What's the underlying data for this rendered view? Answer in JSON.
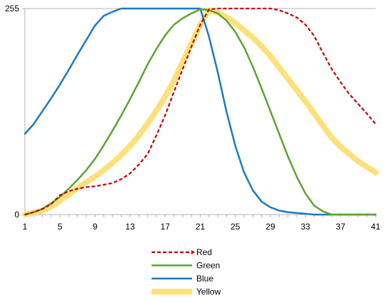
{
  "chart_data": {
    "type": "line",
    "x": [
      1,
      2,
      3,
      4,
      5,
      6,
      7,
      8,
      9,
      10,
      11,
      12,
      13,
      14,
      15,
      16,
      17,
      18,
      19,
      20,
      21,
      22,
      23,
      24,
      25,
      26,
      27,
      28,
      29,
      30,
      31,
      32,
      33,
      34,
      35,
      36,
      37,
      38,
      39,
      40,
      41
    ],
    "xticks": [
      1,
      5,
      9,
      13,
      17,
      21,
      25,
      29,
      33,
      37,
      41
    ],
    "yticks": [
      0,
      255
    ],
    "ylim": [
      0,
      255
    ],
    "xlim": [
      1,
      41
    ],
    "grid": "horizontal at 255",
    "legend_position": "bottom",
    "series": [
      {
        "name": "Red",
        "color": "#c00000",
        "style": "dashed",
        "values": [
          0,
          3,
          7,
          13,
          24,
          29,
          32,
          34,
          35,
          37,
          39,
          44,
          51,
          62,
          75,
          98,
          123,
          152,
          180,
          208,
          235,
          254,
          255,
          255,
          255,
          255,
          255,
          255,
          255,
          253,
          249,
          244,
          235,
          221,
          200,
          180,
          164,
          149,
          137,
          125,
          112
        ]
      },
      {
        "name": "Green",
        "color": "#5ea32e",
        "style": "solid",
        "values": [
          0,
          3,
          7,
          14,
          22,
          32,
          43,
          55,
          69,
          86,
          104,
          123,
          143,
          164,
          186,
          205,
          222,
          235,
          243,
          249,
          254,
          253,
          249,
          240,
          226,
          207,
          183,
          156,
          128,
          100,
          72,
          47,
          26,
          11,
          4,
          0,
          0,
          0,
          0,
          0,
          0
        ]
      },
      {
        "name": "Blue",
        "color": "#1b79c2",
        "style": "solid",
        "values": [
          100,
          112,
          128,
          144,
          161,
          179,
          198,
          216,
          234,
          246,
          251,
          255,
          255,
          255,
          255,
          255,
          255,
          255,
          255,
          255,
          255,
          220,
          176,
          127,
          85,
          52,
          30,
          16,
          9,
          5,
          3,
          2,
          1,
          0,
          0,
          0,
          0,
          0,
          0,
          0,
          0
        ]
      },
      {
        "name": "Yellow",
        "color": "#ffe07a",
        "style": "thick",
        "values": [
          0,
          2,
          5,
          10,
          17,
          25,
          33,
          40,
          47,
          55,
          64,
          74,
          85,
          98,
          113,
          129,
          146,
          166,
          189,
          212,
          235,
          253,
          250,
          244,
          237,
          228,
          219,
          208,
          196,
          182,
          168,
          154,
          140,
          125,
          110,
          95,
          84,
          75,
          66,
          59,
          52
        ]
      }
    ]
  }
}
